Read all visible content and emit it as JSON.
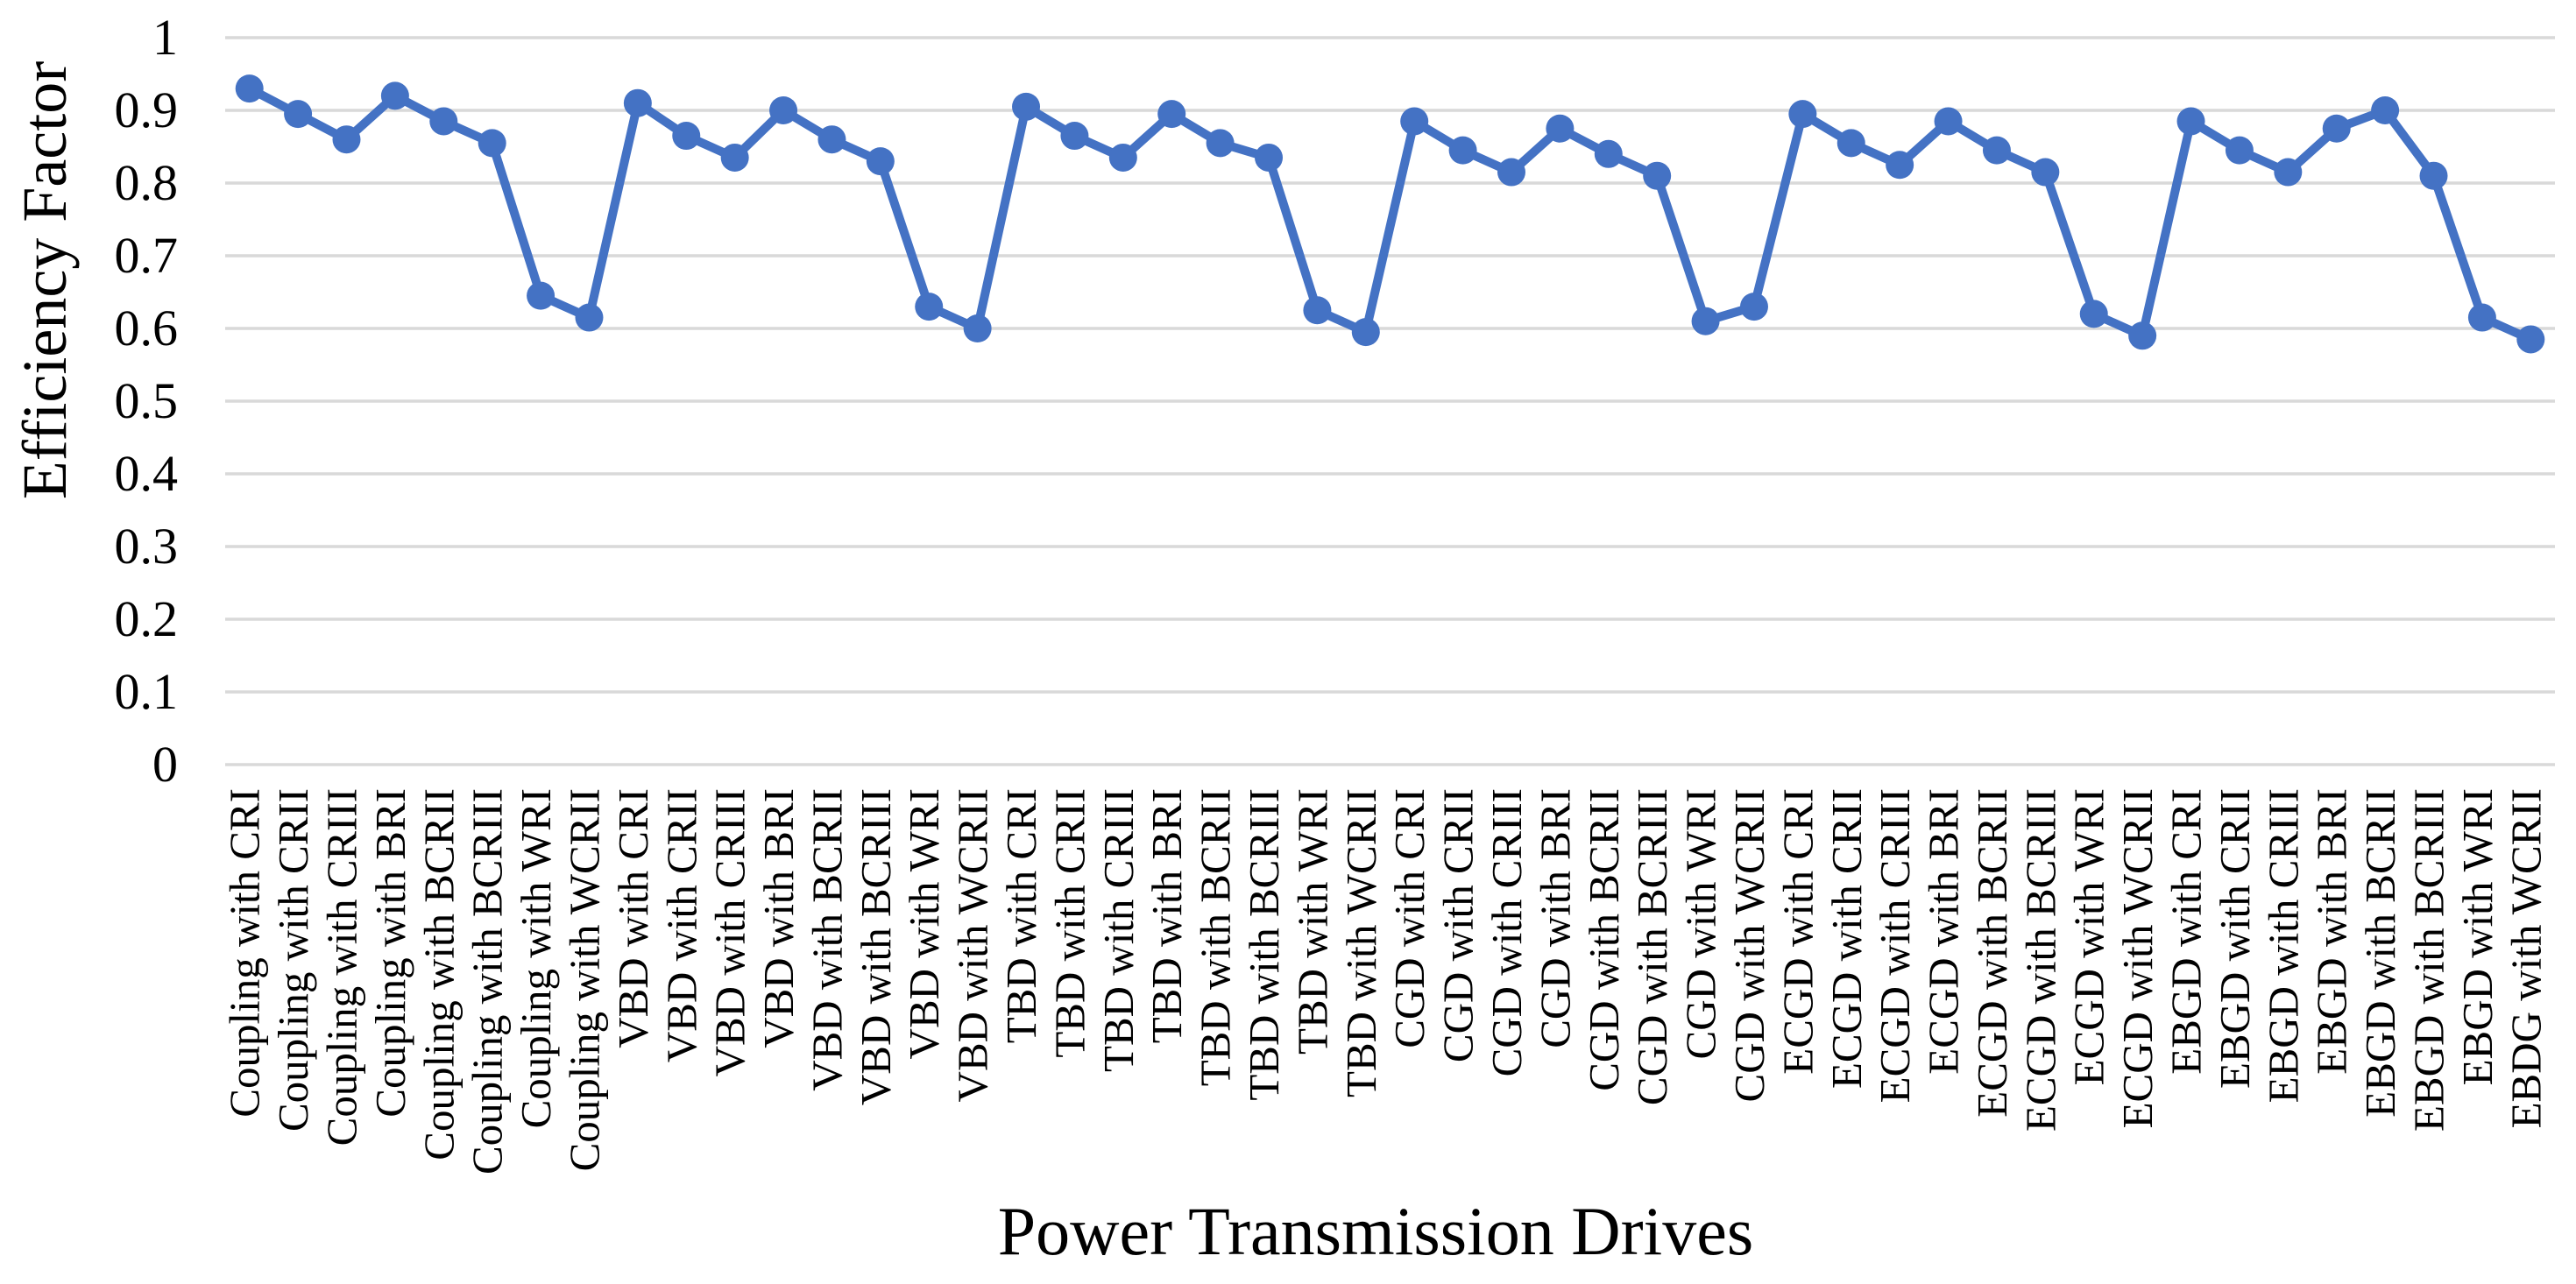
{
  "figure": {
    "background": "#ffffff"
  },
  "chart_data": {
    "type": "line",
    "title": "",
    "xlabel": "Power Transmission Drives",
    "ylabel": "Efficiency Factor",
    "legend": "none",
    "grid": "horizontal",
    "line_color": "#4472C4",
    "marker_color": "#4472C4",
    "marker_shape": "circle",
    "gridline_color": "#D9D9D9",
    "text_color": "#000000",
    "ylim": [
      0,
      1
    ],
    "ytick_labels": [
      "0",
      "0.1",
      "0.2",
      "0.3",
      "0.4",
      "0.5",
      "0.6",
      "0.7",
      "0.8",
      "0.9",
      "1"
    ],
    "categories": [
      "Coupling with CRI",
      "Coupling with CRII",
      "Coupling with CRIII",
      "Coupling with BRI",
      "Coupling with BCRII",
      "Coupling with BCRIII",
      "Coupling with WRI",
      "Coupling with WCRII",
      "VBD with CRI",
      "VBD with CRII",
      "VBD with CRIII",
      "VBD with BRI",
      "VBD with BCRII",
      "VBD with BCRIII",
      "VBD with WRI",
      "VBD with WCRII",
      "TBD with CRI",
      "TBD with CRII",
      "TBD with CRIII",
      "TBD with BRI",
      "TBD with BCRII",
      "TBD with BCRIII",
      "TBD with WRI",
      "TBD with WCRII",
      "CGD with CRI",
      "CGD with CRII",
      "CGD with CRIII",
      "CGD with BRI",
      "CGD with BCRII",
      "CGD with BCRIII",
      "CGD with WRI",
      "CGD with WCRII",
      "ECGD with CRI",
      "ECGD with CRII",
      "ECGD with CRIII",
      "ECGD with BRI",
      "ECGD with BCRII",
      "ECGD with BCRIII",
      "ECGD with WRI",
      "ECGD with WCRII",
      "EBGD with CRI",
      "EBGD with CRII",
      "EBGD with CRIII",
      "EBGD with BRI",
      "EBGD with BCRII",
      "EBGD with BCRIII",
      "EBGD with WRI",
      "EBDG with WCRII"
    ],
    "series": [
      {
        "name": "Efficiency Factor",
        "values": [
          0.93,
          0.895,
          0.86,
          0.92,
          0.885,
          0.855,
          0.645,
          0.615,
          0.91,
          0.865,
          0.835,
          0.9,
          0.86,
          0.83,
          0.63,
          0.6,
          0.905,
          0.865,
          0.835,
          0.895,
          0.855,
          0.835,
          0.625,
          0.595,
          0.885,
          0.845,
          0.815,
          0.875,
          0.84,
          0.81,
          0.61,
          0.63,
          0.895,
          0.855,
          0.825,
          0.885,
          0.845,
          0.815,
          0.62,
          0.59,
          0.885,
          0.845,
          0.815,
          0.875,
          0.9,
          0.81,
          0.615,
          0.585
        ]
      }
    ]
  }
}
